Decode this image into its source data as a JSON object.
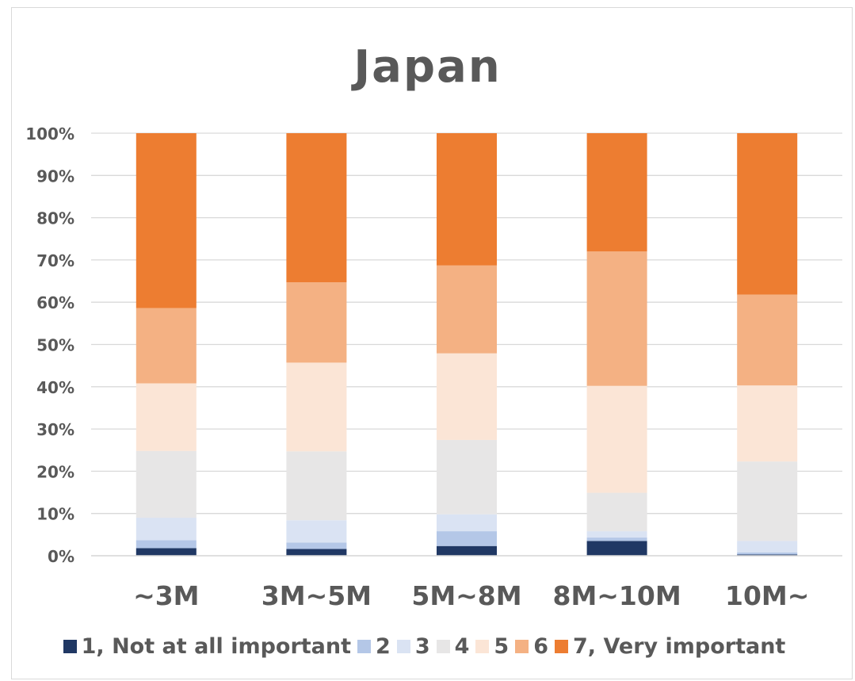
{
  "chart_data": {
    "type": "bar",
    "stacked": true,
    "title": "Japan",
    "categories": [
      "~3M",
      "3M~5M",
      "5M~8M",
      "8M~10M",
      "10M~"
    ],
    "ylim": [
      0,
      100
    ],
    "yticks": [
      "0%",
      "10%",
      "20%",
      "30%",
      "40%",
      "50%",
      "60%",
      "70%",
      "80%",
      "90%",
      "100%"
    ],
    "grid": true,
    "legend_position": "bottom",
    "series": [
      {
        "name": "1, Not at all important",
        "color": "#203864",
        "values": [
          1.8,
          1.6,
          2.3,
          3.5,
          0.3
        ]
      },
      {
        "name": "2",
        "color": "#b4c7e7",
        "values": [
          1.9,
          1.5,
          3.5,
          0.8,
          0.5
        ]
      },
      {
        "name": "3",
        "color": "#dae3f3",
        "values": [
          5.3,
          5.3,
          4.0,
          1.5,
          2.7
        ]
      },
      {
        "name": "4",
        "color": "#e7e6e6",
        "values": [
          15.8,
          16.3,
          17.6,
          9.1,
          18.8
        ]
      },
      {
        "name": "5",
        "color": "#fbe5d6",
        "values": [
          16.0,
          21.0,
          20.5,
          25.3,
          18.0
        ]
      },
      {
        "name": "6",
        "color": "#f4b183",
        "values": [
          17.8,
          19.0,
          20.8,
          31.8,
          21.5
        ]
      },
      {
        "name": "7, Very important",
        "color": "#ed7d31",
        "values": [
          41.4,
          35.3,
          31.3,
          28.0,
          38.2
        ]
      }
    ]
  }
}
